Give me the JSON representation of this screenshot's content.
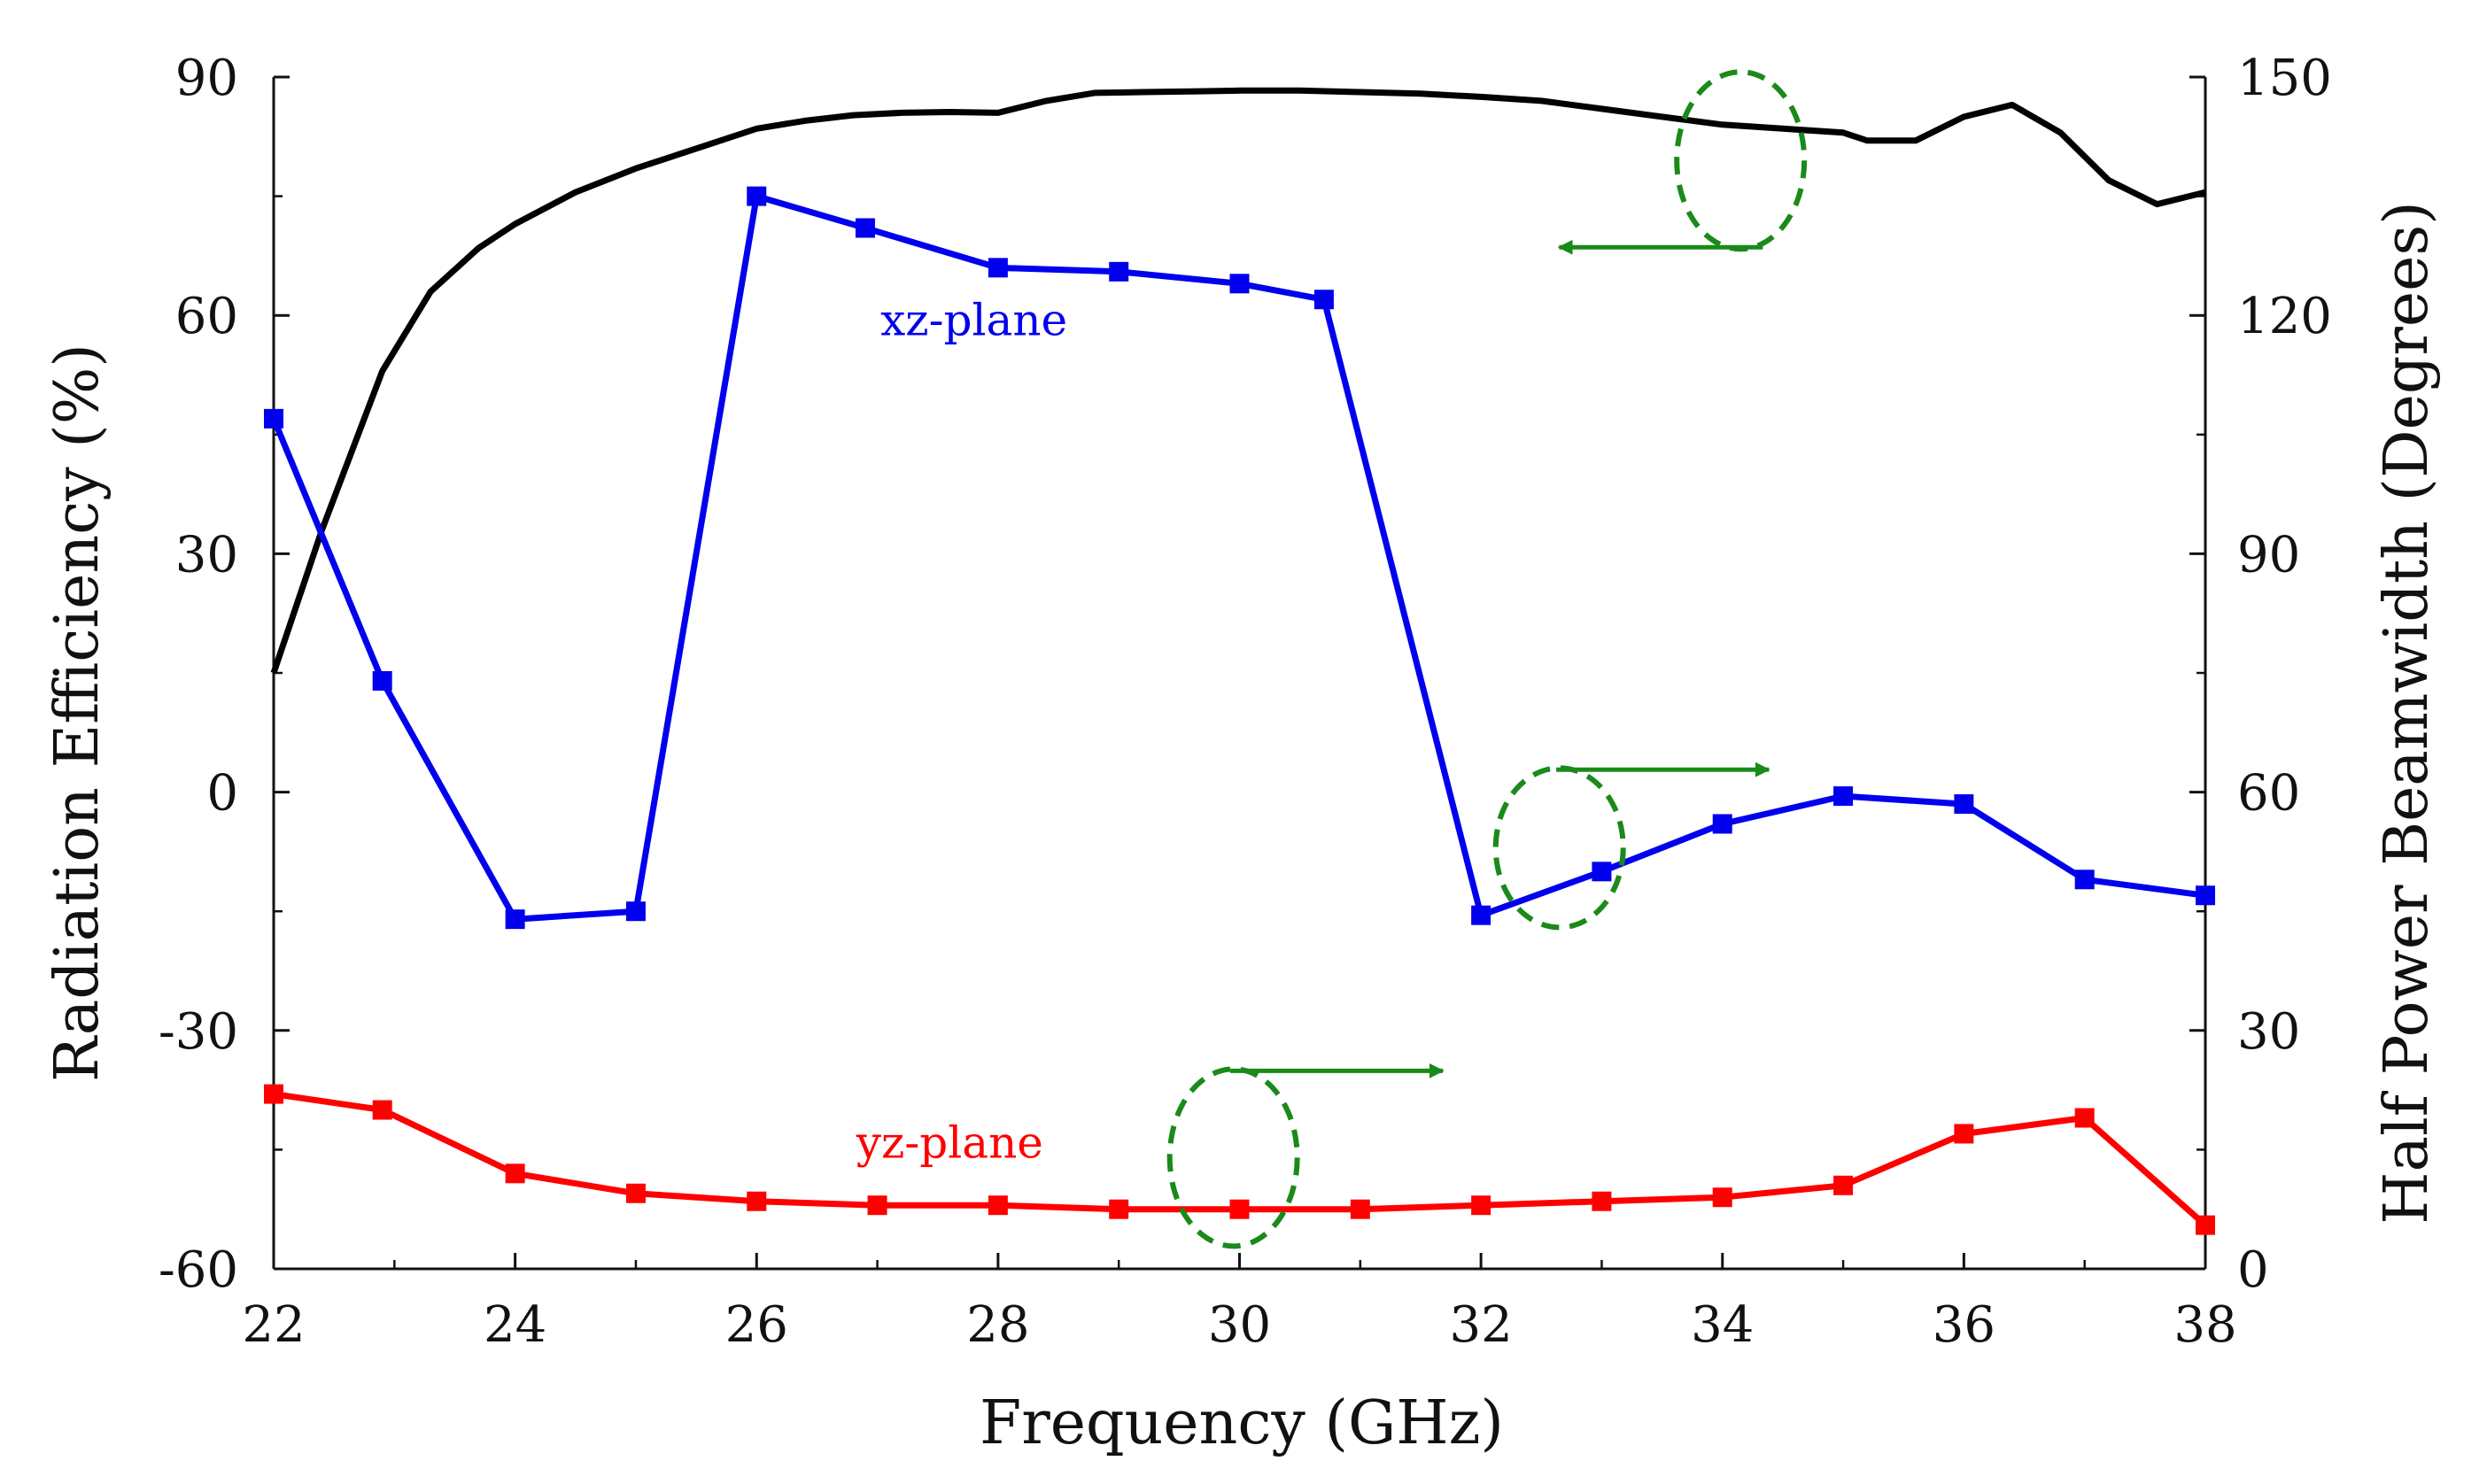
{
  "chart_data": {
    "type": "line",
    "xlabel": "Frequency (GHz)",
    "ylabel_left": "Radiation Efficiency (%)",
    "ylabel_right": "Half Power Beamwidth (Degrees)",
    "xlim": [
      22,
      38
    ],
    "ylim_left": [
      -60,
      90
    ],
    "ylim_right": [
      0,
      150
    ],
    "x_ticks": [
      22,
      24,
      26,
      28,
      30,
      32,
      34,
      36,
      38
    ],
    "y_left_ticks": [
      -60,
      -30,
      0,
      30,
      60,
      90
    ],
    "y_right_ticks": [
      0,
      30,
      60,
      90,
      120,
      150
    ],
    "series": [
      {
        "name": "Radiation Efficiency",
        "axis": "left",
        "color": "#000000",
        "marker": "none",
        "x": [
          22,
          22.4,
          22.9,
          23.3,
          23.7,
          24,
          24.5,
          25,
          25.5,
          26,
          26.4,
          26.8,
          27.2,
          27.6,
          28,
          28.4,
          28.8,
          29.2,
          29.6,
          30,
          30.5,
          31,
          31.5,
          32,
          32.5,
          33,
          33.5,
          34,
          34.5,
          35,
          35.2,
          35.6,
          36,
          36.4,
          36.8,
          37.2,
          37.6,
          38
        ],
        "y": [
          15,
          33,
          53,
          63,
          68.5,
          71.5,
          75.5,
          78.5,
          81,
          83.5,
          84.5,
          85.2,
          85.5,
          85.6,
          85.5,
          87,
          88,
          88.1,
          88.2,
          88.3,
          88.3,
          88.1,
          87.9,
          87.5,
          87,
          86,
          85,
          84,
          83.5,
          83,
          82,
          82,
          85,
          86.5,
          83,
          77,
          74,
          75.5
        ]
      },
      {
        "name": "xz-plane",
        "axis": "right",
        "color": "#0000ee",
        "marker": "square",
        "x": [
          22,
          22.9,
          24,
          25,
          26,
          26.9,
          28,
          29,
          30,
          30.7,
          32,
          33,
          34,
          35,
          36,
          37,
          38
        ],
        "y": [
          107,
          74,
          44,
          45,
          135,
          131,
          126,
          125.5,
          124,
          122,
          44.5,
          50,
          56,
          59.5,
          58.5,
          49,
          47
        ]
      },
      {
        "name": "yz-plane",
        "axis": "right",
        "color": "#ff0000",
        "marker": "square",
        "x": [
          22,
          22.9,
          24,
          25,
          26,
          27,
          28,
          29,
          30,
          31,
          32,
          33,
          34,
          35,
          36,
          37,
          38
        ],
        "y": [
          22,
          20,
          12,
          9.5,
          8.5,
          8,
          8,
          7.5,
          7.5,
          7.5,
          8,
          8.5,
          9,
          10.5,
          17,
          19,
          5.5
        ]
      }
    ],
    "annotations": [
      {
        "text": "xz-plane",
        "color": "#0000ee",
        "x": 27.8,
        "y_right": 117.5
      },
      {
        "text": "yz-plane",
        "color": "#ff0000",
        "x": 27.6,
        "y_right": 14
      },
      {
        "type": "ellipse-arrow",
        "direction": "left",
        "color": "#1a8a1a"
      },
      {
        "type": "ellipse-arrow",
        "direction": "right",
        "color": "#1a8a1a"
      },
      {
        "type": "ellipse-arrow",
        "direction": "right",
        "color": "#1a8a1a"
      }
    ]
  }
}
